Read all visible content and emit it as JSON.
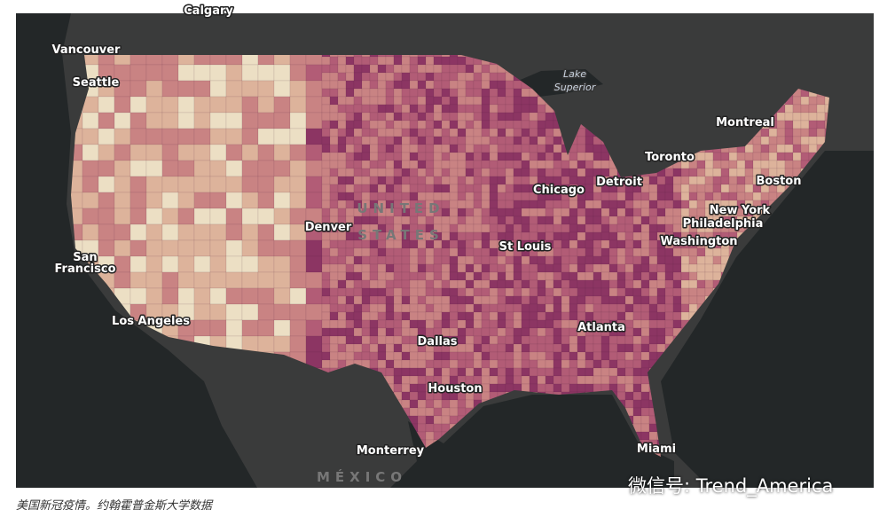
{
  "labels": [
    {
      "lines": [
        "Calgary"
      ]
    },
    {
      "lines": [
        "Vancouver"
      ]
    },
    {
      "lines": [
        "Seattle"
      ]
    },
    {
      "lines": [
        "Lake",
        "Superior"
      ]
    },
    {
      "lines": [
        "Montreal"
      ]
    },
    {
      "lines": [
        "Toronto"
      ]
    },
    {
      "lines": [
        "Chicago"
      ]
    },
    {
      "lines": [
        "Detroit"
      ]
    },
    {
      "lines": [
        "Boston"
      ]
    },
    {
      "lines": [
        "New York"
      ]
    },
    {
      "lines": [
        "Philadelphia"
      ]
    },
    {
      "lines": [
        "Washington"
      ]
    },
    {
      "lines": [
        "UNITED",
        "STATES"
      ]
    },
    {
      "lines": [
        "Denver"
      ]
    },
    {
      "lines": [
        "St Louis"
      ]
    },
    {
      "lines": [
        "San",
        "Francisco"
      ]
    },
    {
      "lines": [
        "Los Angeles"
      ]
    },
    {
      "lines": [
        "Dallas"
      ]
    },
    {
      "lines": [
        "Atlanta"
      ]
    },
    {
      "lines": [
        "Houston"
      ]
    },
    {
      "lines": [
        "Monterrey"
      ]
    },
    {
      "lines": [
        "Miami"
      ]
    },
    {
      "lines": [
        "MÉXICO"
      ]
    }
  ],
  "caption": "美国新冠疫情。约翰霍普金斯大学数据",
  "watermark": "微信号: Trend_America"
}
